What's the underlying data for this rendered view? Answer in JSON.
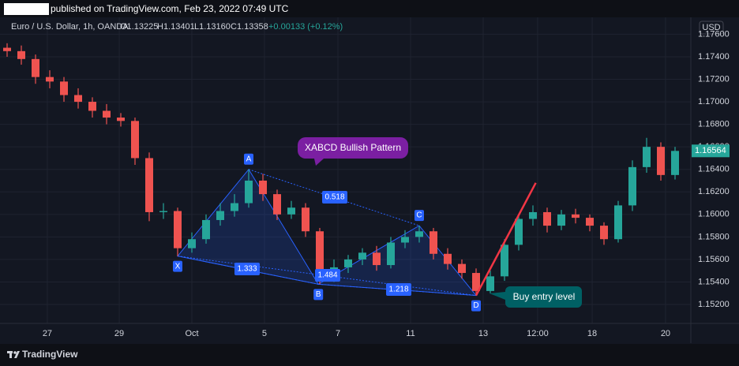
{
  "header": {
    "published": "published on TradingView.com, Feb 23, 2022 07:49 UTC"
  },
  "legend": {
    "symbol": "Euro / U.S. Dollar, 1h, OANDA",
    "open": "O1.13225",
    "high": "H1.13401",
    "low": "L1.13160",
    "close": "C1.13358",
    "change": "+0.00133 (+0.12%)"
  },
  "currency": "USD",
  "footer": {
    "brand": "TradingView"
  },
  "chart_data": {
    "type": "candlestick",
    "up_color": "#26a69a",
    "down_color": "#ef5350",
    "grid": true,
    "xlim": [
      -0.5,
      48.111
    ],
    "xticks": [
      {
        "value": 2.83,
        "label": "27"
      },
      {
        "value": 7.89,
        "label": "29"
      },
      {
        "value": 13.0,
        "label": "Oct"
      },
      {
        "value": 18.11,
        "label": "5"
      },
      {
        "value": 23.28,
        "label": "7"
      },
      {
        "value": 28.39,
        "label": "11"
      },
      {
        "value": 33.5,
        "label": "13"
      },
      {
        "value": 37.33,
        "label": "12:00"
      },
      {
        "value": 41.17,
        "label": "18"
      },
      {
        "value": 46.33,
        "label": "20"
      }
    ],
    "ylim": [
      1.15032,
      1.1775
    ],
    "yticks": [
      {
        "value": 1.152,
        "label": "1.15200"
      },
      {
        "value": 1.154,
        "label": "1.15400"
      },
      {
        "value": 1.156,
        "label": "1.15600"
      },
      {
        "value": 1.158,
        "label": "1.15800"
      },
      {
        "value": 1.16,
        "label": "1.16000"
      },
      {
        "value": 1.162,
        "label": "1.16200"
      },
      {
        "value": 1.164,
        "label": "1.16400"
      },
      {
        "value": 1.166,
        "label": "1.16600"
      },
      {
        "value": 1.168,
        "label": "1.16800"
      },
      {
        "value": 1.17,
        "label": "1.17000"
      },
      {
        "value": 1.172,
        "label": "1.17200"
      },
      {
        "value": 1.174,
        "label": "1.17400"
      },
      {
        "value": 1.176,
        "label": "1.17600"
      }
    ],
    "open": [
      1.1748,
      1.1745,
      1.1738,
      1.1722,
      1.1718,
      1.1706,
      1.17,
      1.1692,
      1.1686,
      1.1683,
      1.165,
      1.1602,
      1.1603,
      1.157,
      1.1578,
      1.1595,
      1.1603,
      1.161,
      1.163,
      1.1618,
      1.16,
      1.1606,
      1.1585,
      1.1545,
      1.1553,
      1.156,
      1.1566,
      1.1555,
      1.1575,
      1.158,
      1.1585,
      1.1565,
      1.1556,
      1.1548,
      1.1532,
      1.1545,
      1.1573,
      1.1596,
      1.1602,
      1.159,
      1.16,
      1.1597,
      1.159,
      1.1578,
      1.1608,
      1.1642,
      1.166,
      1.1635
    ],
    "high": [
      1.1752,
      1.175,
      1.1742,
      1.1728,
      1.1722,
      1.1712,
      1.1704,
      1.1698,
      1.169,
      1.1686,
      1.1655,
      1.161,
      1.1606,
      1.1584,
      1.16,
      1.161,
      1.1618,
      1.164,
      1.1636,
      1.1622,
      1.1612,
      1.161,
      1.1588,
      1.156,
      1.1564,
      1.157,
      1.1572,
      1.158,
      1.1586,
      1.159,
      1.1588,
      1.157,
      1.156,
      1.1552,
      1.155,
      1.1578,
      1.16,
      1.1608,
      1.1606,
      1.1604,
      1.1605,
      1.16,
      1.1593,
      1.1612,
      1.1648,
      1.1668,
      1.1664,
      1.166
    ],
    "low": [
      1.174,
      1.1733,
      1.1716,
      1.1712,
      1.17,
      1.1694,
      1.1686,
      1.168,
      1.1678,
      1.1644,
      1.1594,
      1.1596,
      1.1563,
      1.1566,
      1.1574,
      1.159,
      1.1598,
      1.1606,
      1.1612,
      1.1595,
      1.1596,
      1.158,
      1.1538,
      1.154,
      1.1548,
      1.1555,
      1.155,
      1.1552,
      1.157,
      1.1575,
      1.156,
      1.1551,
      1.1543,
      1.1528,
      1.153,
      1.1541,
      1.1568,
      1.159,
      1.1584,
      1.1586,
      1.1592,
      1.1585,
      1.1573,
      1.1575,
      1.1603,
      1.1637,
      1.163,
      1.1631
    ],
    "close": [
      1.1745,
      1.1738,
      1.1722,
      1.1718,
      1.1706,
      1.17,
      1.1692,
      1.1686,
      1.1683,
      1.165,
      1.1602,
      1.1603,
      1.157,
      1.1578,
      1.1595,
      1.1603,
      1.161,
      1.163,
      1.1618,
      1.16,
      1.1606,
      1.1585,
      1.1545,
      1.1553,
      1.156,
      1.1566,
      1.1555,
      1.1575,
      1.158,
      1.1585,
      1.1565,
      1.1556,
      1.1548,
      1.1532,
      1.1545,
      1.1573,
      1.1596,
      1.1602,
      1.159,
      1.16,
      1.1597,
      1.159,
      1.1578,
      1.1608,
      1.1642,
      1.166,
      1.1635,
      1.16564
    ],
    "last_price": 1.16564,
    "pattern": {
      "points": [
        {
          "label": "X",
          "x": 12.0,
          "y": 1.1563
        },
        {
          "label": "A",
          "x": 17.0,
          "y": 1.164
        },
        {
          "label": "B",
          "x": 21.9,
          "y": 1.1538
        },
        {
          "label": "C",
          "x": 29.0,
          "y": 1.159
        },
        {
          "label": "D",
          "x": 33.0,
          "y": 1.1528
        }
      ],
      "ratios": [
        0.518,
        1.333,
        1.484,
        1.218
      ]
    },
    "entry_line": {
      "x": [
        33.0,
        37.2
      ],
      "y": [
        1.1528,
        1.1628
      ]
    },
    "annotations": [
      "XABCD Bullish Pattern",
      "Buy entry level"
    ]
  }
}
